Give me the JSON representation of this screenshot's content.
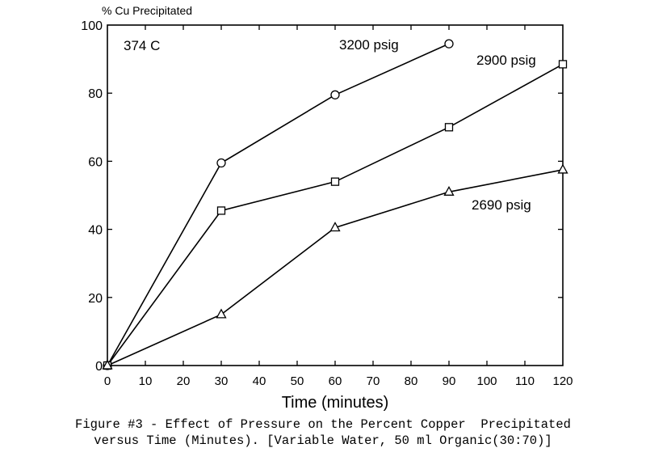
{
  "chart_data": {
    "type": "line",
    "ylabel": "% Cu Precipitated",
    "xlabel": "Time (minutes)",
    "annotation": "374 C",
    "xlim": [
      0,
      120
    ],
    "ylim": [
      0,
      100
    ],
    "xticks": [
      0,
      10,
      20,
      30,
      40,
      50,
      60,
      70,
      80,
      90,
      100,
      110,
      120
    ],
    "yticks": [
      0,
      20,
      40,
      60,
      80,
      100
    ],
    "grid": false,
    "legend": "inline labels",
    "series": [
      {
        "name": "3200 psig",
        "marker": "circle",
        "x": [
          0,
          30,
          60,
          90
        ],
        "y": [
          0,
          59.5,
          79.5,
          94.5
        ]
      },
      {
        "name": "2900 psig",
        "marker": "square",
        "x": [
          0,
          30,
          60,
          90,
          120
        ],
        "y": [
          0,
          45.5,
          54,
          70,
          88.5
        ]
      },
      {
        "name": "2690 psig",
        "marker": "triangle",
        "x": [
          0,
          30,
          60,
          90,
          120
        ],
        "y": [
          0,
          15,
          40.5,
          51,
          57.5
        ]
      }
    ]
  },
  "caption": {
    "line1": "Figure #3 - Effect of Pressure on the Percent Copper  Precipitated",
    "line2": "versus Time (Minutes). [Variable Water, 50 ml Organic(30:70)]"
  }
}
